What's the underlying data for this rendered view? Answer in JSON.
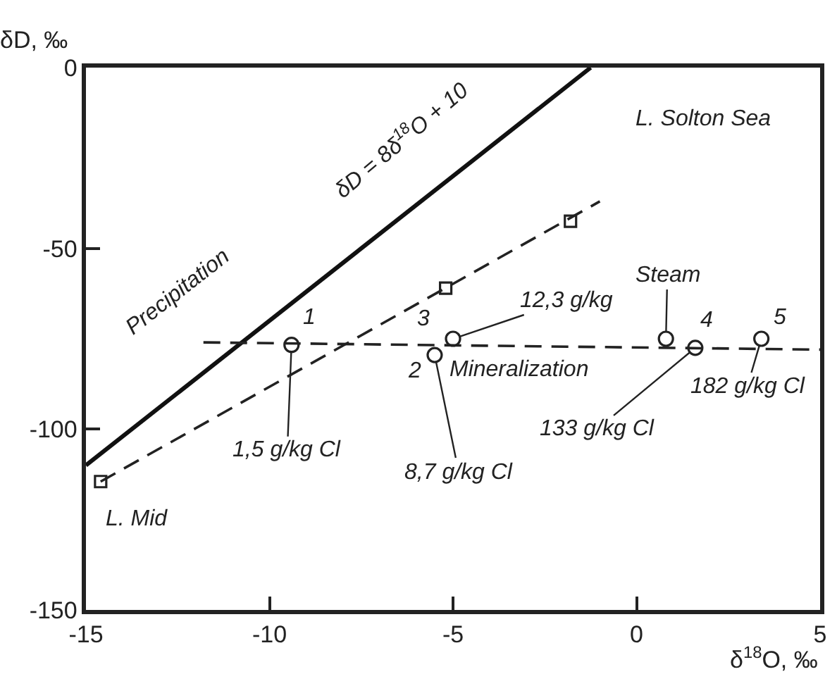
{
  "chart_data": {
    "type": "line",
    "xlabel": "δ$^{18}$O, ‰",
    "ylabel": "δD, ‰",
    "xlim": [
      -15,
      5
    ],
    "ylim": [
      -150,
      0
    ],
    "xticks": [
      -15,
      -10,
      -5,
      0,
      5
    ],
    "yticks": [
      0,
      -50,
      -100,
      -150
    ],
    "grid": false,
    "series": [
      {
        "type": "line",
        "color": "#111111",
        "line_style": "solid",
        "x": [
          -15,
          -1.25
        ],
        "values": [
          -110,
          0
        ]
      },
      {
        "type": "line",
        "color": "#222222",
        "line_style": "dashed",
        "x": [
          -14.6,
          -1.0
        ],
        "values": [
          -114.5,
          -37
        ]
      },
      {
        "type": "scatter",
        "color": "#222222",
        "marker": "square",
        "x": [
          -14.6,
          -5.2,
          -1.8
        ],
        "values": [
          -114.5,
          -61,
          -42.5
        ]
      },
      {
        "type": "line",
        "color": "#222222",
        "line_style": "dashed",
        "x": [
          -11.8,
          5
        ],
        "values": [
          -76,
          -78
        ]
      },
      {
        "type": "scatter",
        "color": "#222222",
        "marker": "circle",
        "x": [
          -9.4,
          -5.5,
          -5.0,
          0.8,
          1.6,
          3.4
        ],
        "values": [
          -76.7,
          -79.5,
          -75,
          -75,
          -77.5,
          -75
        ]
      }
    ],
    "annotations": [
      "δD = 8δ$^{18}$O + 10",
      "Precipitation",
      "L. Solton Sea",
      "L. Mid",
      "Mineralization",
      "1",
      "2",
      "3",
      "4",
      "5",
      {
        "text": "Steam",
        "x": 0.8,
        "y": -75
      },
      {
        "text": "12,3 g/kg",
        "x": -5.0,
        "y": -75
      },
      {
        "text": "1,5 g/kg Cl",
        "x": -9.4,
        "y": -76.7
      },
      {
        "text": "8,7 g/kg Cl",
        "x": -5.5,
        "y": -79.5
      },
      {
        "text": "133 g/kg Cl",
        "x": 1.6,
        "y": -77.5
      },
      {
        "text": "182 g/kg Cl",
        "x": 3.4,
        "y": -75
      }
    ]
  }
}
